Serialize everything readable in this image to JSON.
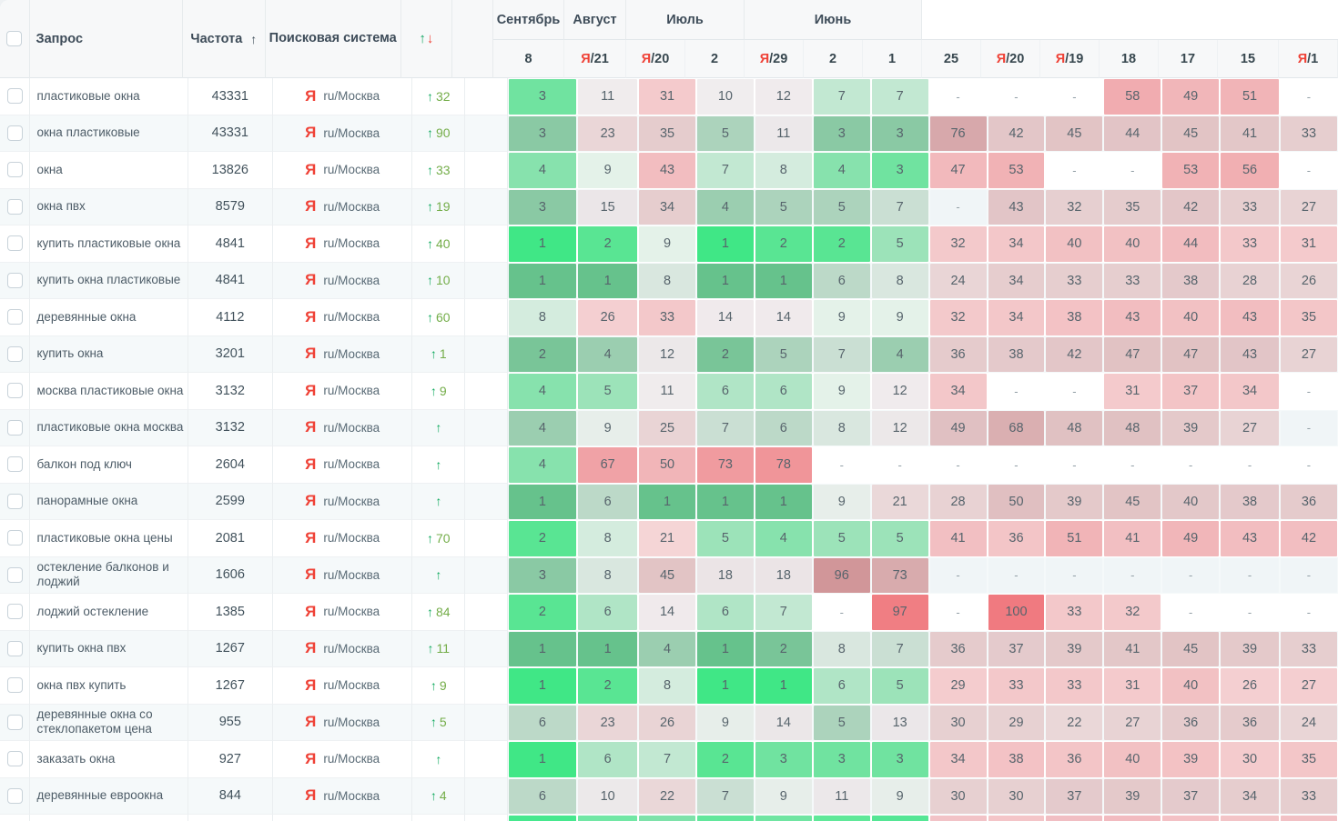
{
  "header": {
    "query_label": "Запрос",
    "frequency_label": "Частота",
    "frequency_sort_icon": "↑",
    "engine_label": "Поисковая система",
    "change_up": "↑",
    "change_down": "↓",
    "month_groups": [
      {
        "label": "Сентябрь",
        "span": 1
      },
      {
        "label": "Август",
        "span": 1
      },
      {
        "label": "Июль",
        "span": 2
      },
      {
        "label": "Июнь",
        "span": 3
      },
      {
        "label": "",
        "span": 7
      }
    ],
    "day_columns": [
      {
        "day": "8",
        "yandex": false
      },
      {
        "day": "21",
        "yandex": true
      },
      {
        "day": "20",
        "yandex": true
      },
      {
        "day": "2",
        "yandex": false
      },
      {
        "day": "29",
        "yandex": true
      },
      {
        "day": "2",
        "yandex": false
      },
      {
        "day": "1",
        "yandex": false
      },
      {
        "day": "25",
        "yandex": false
      },
      {
        "day": "20",
        "yandex": true
      },
      {
        "day": "19",
        "yandex": true
      },
      {
        "day": "18",
        "yandex": false
      },
      {
        "day": "17",
        "yandex": false
      },
      {
        "day": "15",
        "yandex": false
      },
      {
        "day": "1",
        "yandex": true
      }
    ]
  },
  "engine": {
    "icon": "Я",
    "region": "ru/Москва"
  },
  "rows": [
    {
      "query": "пластиковые окна",
      "frequency": "43331",
      "change": "32",
      "positions": [
        "3",
        "11",
        "31",
        "10",
        "12",
        "7",
        "7",
        "-",
        "-",
        "-",
        "58",
        "49",
        "51",
        "-"
      ]
    },
    {
      "query": "окна пластиковые",
      "frequency": "43331",
      "change": "90",
      "positions": [
        "3",
        "23",
        "35",
        "5",
        "11",
        "3",
        "3",
        "76",
        "42",
        "45",
        "44",
        "45",
        "41",
        "33"
      ]
    },
    {
      "query": "окна",
      "frequency": "13826",
      "change": "33",
      "positions": [
        "4",
        "9",
        "43",
        "7",
        "8",
        "4",
        "3",
        "47",
        "53",
        "-",
        "-",
        "53",
        "56",
        "-"
      ]
    },
    {
      "query": "окна пвх",
      "frequency": "8579",
      "change": "19",
      "positions": [
        "3",
        "15",
        "34",
        "4",
        "5",
        "5",
        "7",
        "-",
        "43",
        "32",
        "35",
        "42",
        "33",
        "27"
      ]
    },
    {
      "query": "купить пластиковые окна",
      "frequency": "4841",
      "change": "40",
      "positions": [
        "1",
        "2",
        "9",
        "1",
        "2",
        "2",
        "5",
        "32",
        "34",
        "40",
        "40",
        "44",
        "33",
        "31"
      ]
    },
    {
      "query": "купить окна пластиковые",
      "frequency": "4841",
      "change": "10",
      "positions": [
        "1",
        "1",
        "8",
        "1",
        "1",
        "6",
        "8",
        "24",
        "34",
        "33",
        "33",
        "38",
        "28",
        "26"
      ]
    },
    {
      "query": "деревянные окна",
      "frequency": "4112",
      "change": "60",
      "positions": [
        "8",
        "26",
        "33",
        "14",
        "14",
        "9",
        "9",
        "32",
        "34",
        "38",
        "43",
        "40",
        "43",
        "35"
      ]
    },
    {
      "query": "купить окна",
      "frequency": "3201",
      "change": "1",
      "positions": [
        "2",
        "4",
        "12",
        "2",
        "5",
        "7",
        "4",
        "36",
        "38",
        "42",
        "47",
        "47",
        "43",
        "27"
      ]
    },
    {
      "query": "москва пластиковые окна",
      "frequency": "3132",
      "change": "9",
      "positions": [
        "4",
        "5",
        "11",
        "6",
        "6",
        "9",
        "12",
        "34",
        "-",
        "-",
        "31",
        "37",
        "34",
        "-"
      ]
    },
    {
      "query": "пластиковые окна москва",
      "frequency": "3132",
      "change": "",
      "positions": [
        "4",
        "9",
        "25",
        "7",
        "6",
        "8",
        "12",
        "49",
        "68",
        "48",
        "48",
        "39",
        "27",
        "-"
      ]
    },
    {
      "query": "балкон под ключ",
      "frequency": "2604",
      "change": "",
      "positions": [
        "4",
        "67",
        "50",
        "73",
        "78",
        "-",
        "-",
        "-",
        "-",
        "-",
        "-",
        "-",
        "-",
        "-"
      ]
    },
    {
      "query": "панорамные окна",
      "frequency": "2599",
      "change": "",
      "positions": [
        "1",
        "6",
        "1",
        "1",
        "1",
        "9",
        "21",
        "28",
        "50",
        "39",
        "45",
        "40",
        "38",
        "36"
      ]
    },
    {
      "query": "пластиковые окна цены",
      "frequency": "2081",
      "change": "70",
      "positions": [
        "2",
        "8",
        "21",
        "5",
        "4",
        "5",
        "5",
        "41",
        "36",
        "51",
        "41",
        "49",
        "43",
        "42"
      ]
    },
    {
      "query": "остекление балконов и лоджий",
      "frequency": "1606",
      "change": "",
      "positions": [
        "3",
        "8",
        "45",
        "18",
        "18",
        "96",
        "73",
        "-",
        "-",
        "-",
        "-",
        "-",
        "-",
        "-"
      ]
    },
    {
      "query": "лоджий остекление",
      "frequency": "1385",
      "change": "84",
      "positions": [
        "2",
        "6",
        "14",
        "6",
        "7",
        "-",
        "97",
        "-",
        "100",
        "33",
        "32",
        "-",
        "-",
        "-"
      ]
    },
    {
      "query": "купить окна пвх",
      "frequency": "1267",
      "change": "11",
      "positions": [
        "1",
        "1",
        "4",
        "1",
        "2",
        "8",
        "7",
        "36",
        "37",
        "39",
        "41",
        "45",
        "39",
        "33"
      ]
    },
    {
      "query": "окна пвх купить",
      "frequency": "1267",
      "change": "9",
      "positions": [
        "1",
        "2",
        "8",
        "1",
        "1",
        "6",
        "5",
        "29",
        "33",
        "33",
        "31",
        "40",
        "26",
        "27"
      ]
    },
    {
      "query": "деревянные окна со стеклопакетом цена",
      "frequency": "955",
      "change": "5",
      "positions": [
        "6",
        "23",
        "26",
        "9",
        "14",
        "5",
        "13",
        "30",
        "29",
        "22",
        "27",
        "36",
        "36",
        "24"
      ]
    },
    {
      "query": "заказать окна",
      "frequency": "927",
      "change": "",
      "positions": [
        "1",
        "6",
        "7",
        "2",
        "3",
        "3",
        "3",
        "34",
        "38",
        "36",
        "40",
        "39",
        "30",
        "35"
      ]
    },
    {
      "query": "деревянные евроокна",
      "frequency": "844",
      "change": "4",
      "positions": [
        "6",
        "10",
        "22",
        "7",
        "9",
        "11",
        "9",
        "30",
        "30",
        "37",
        "39",
        "37",
        "34",
        "33"
      ]
    }
  ],
  "partial_row_colors": [
    "#46e88e",
    "#72e7a5",
    "#7ee2aa",
    "#62e79c",
    "#70e5a2",
    "#60e899",
    "#55e695",
    "#f2c3c7",
    "#f4c5c8",
    "#f1bec3",
    "#f2bbc0",
    "#f3c1c5",
    "#f3c4c7",
    "#f2c1c5"
  ],
  "colors": {
    "yandex_red": "#ef4136",
    "change_arrow_green": "#0ea95d",
    "change_number_green": "#74ad49"
  }
}
